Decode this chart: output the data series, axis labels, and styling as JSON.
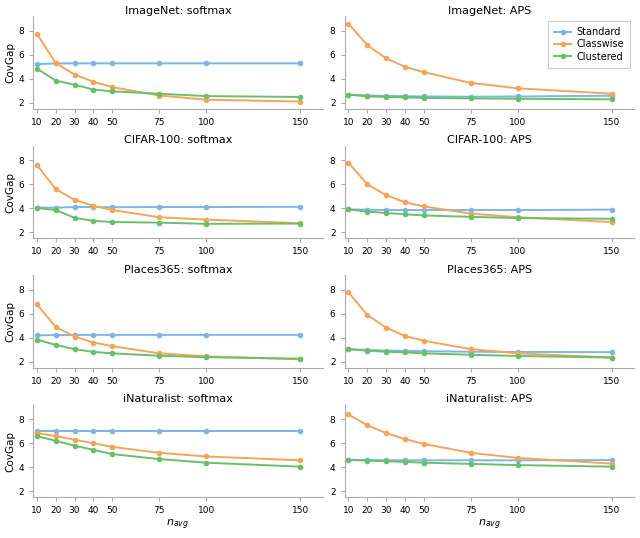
{
  "x": [
    10,
    20,
    30,
    40,
    50,
    75,
    100,
    150
  ],
  "titles": [
    [
      "ImageNet: softmax",
      "ImageNet: APS"
    ],
    [
      "CIFAR-100: softmax",
      "CIFAR-100: APS"
    ],
    [
      "Places365: softmax",
      "Places365: APS"
    ],
    [
      "iNaturalist: softmax",
      "iNaturalist: APS"
    ]
  ],
  "data": {
    "ImageNet: softmax": {
      "Standard": [
        5.22,
        5.27,
        5.28,
        5.28,
        5.28,
        5.28,
        5.28,
        5.28
      ],
      "Classwise": [
        7.75,
        5.3,
        4.35,
        3.75,
        3.3,
        2.6,
        2.25,
        2.1
      ],
      "Clustered": [
        4.85,
        3.85,
        3.5,
        3.1,
        2.95,
        2.75,
        2.55,
        2.48
      ]
    },
    "ImageNet: APS": {
      "Standard": [
        2.68,
        2.6,
        2.57,
        2.54,
        2.52,
        2.5,
        2.52,
        2.58
      ],
      "Classwise": [
        8.6,
        6.8,
        5.7,
        5.0,
        4.55,
        3.65,
        3.2,
        2.75
      ],
      "Clustered": [
        2.68,
        2.52,
        2.48,
        2.44,
        2.4,
        2.36,
        2.33,
        2.28
      ]
    },
    "CIFAR-100: softmax": {
      "Standard": [
        4.05,
        4.05,
        4.1,
        4.1,
        4.08,
        4.1,
        4.1,
        4.12
      ],
      "Classwise": [
        7.6,
        5.6,
        4.7,
        4.2,
        3.85,
        3.25,
        3.05,
        2.75
      ],
      "Clustered": [
        4.02,
        3.85,
        3.2,
        2.95,
        2.85,
        2.8,
        2.7,
        2.72
      ]
    },
    "CIFAR-100: APS": {
      "Standard": [
        3.9,
        3.88,
        3.85,
        3.85,
        3.85,
        3.85,
        3.85,
        3.88
      ],
      "Classwise": [
        7.8,
        6.0,
        5.1,
        4.5,
        4.15,
        3.55,
        3.25,
        2.85
      ],
      "Clustered": [
        3.9,
        3.72,
        3.6,
        3.5,
        3.4,
        3.28,
        3.18,
        3.12
      ]
    },
    "Places365: softmax": {
      "Standard": [
        4.2,
        4.22,
        4.22,
        4.24,
        4.24,
        4.24,
        4.24,
        4.24
      ],
      "Classwise": [
        6.8,
        4.9,
        4.1,
        3.6,
        3.3,
        2.7,
        2.45,
        2.2
      ],
      "Clustered": [
        3.85,
        3.4,
        3.05,
        2.82,
        2.7,
        2.5,
        2.38,
        2.25
      ]
    },
    "Places365: APS": {
      "Standard": [
        3.05,
        2.98,
        2.93,
        2.9,
        2.88,
        2.83,
        2.82,
        2.8
      ],
      "Classwise": [
        7.8,
        5.9,
        4.85,
        4.15,
        3.75,
        3.05,
        2.7,
        2.35
      ],
      "Clustered": [
        3.05,
        2.92,
        2.83,
        2.78,
        2.7,
        2.58,
        2.48,
        2.35
      ]
    },
    "iNaturalist: softmax": {
      "Standard": [
        7.05,
        7.05,
        7.05,
        7.05,
        7.05,
        7.05,
        7.05,
        7.05
      ],
      "Classwise": [
        6.85,
        6.6,
        6.3,
        6.0,
        5.7,
        5.2,
        4.9,
        4.58
      ],
      "Clustered": [
        6.6,
        6.2,
        5.8,
        5.45,
        5.1,
        4.68,
        4.38,
        4.05
      ]
    },
    "iNaturalist: APS": {
      "Standard": [
        4.62,
        4.6,
        4.58,
        4.58,
        4.58,
        4.58,
        4.58,
        4.6
      ],
      "Classwise": [
        8.4,
        7.5,
        6.85,
        6.35,
        5.95,
        5.2,
        4.78,
        4.3
      ],
      "Clustered": [
        4.62,
        4.55,
        4.5,
        4.45,
        4.38,
        4.28,
        4.18,
        4.05
      ]
    }
  },
  "colors": {
    "Standard": "#7db6e0",
    "Classwise": "#f5a55a",
    "Clustered": "#6abf6a"
  },
  "ylabel": "CovGap",
  "xlabel_latex": "$n_{avg}$",
  "ylim": [
    1.5,
    9.2
  ],
  "yticks": [
    2,
    4,
    6,
    8
  ],
  "xticks": [
    10,
    20,
    30,
    40,
    50,
    75,
    100,
    150
  ],
  "legend_entries": [
    "Standard",
    "Classwise",
    "Clustered"
  ]
}
